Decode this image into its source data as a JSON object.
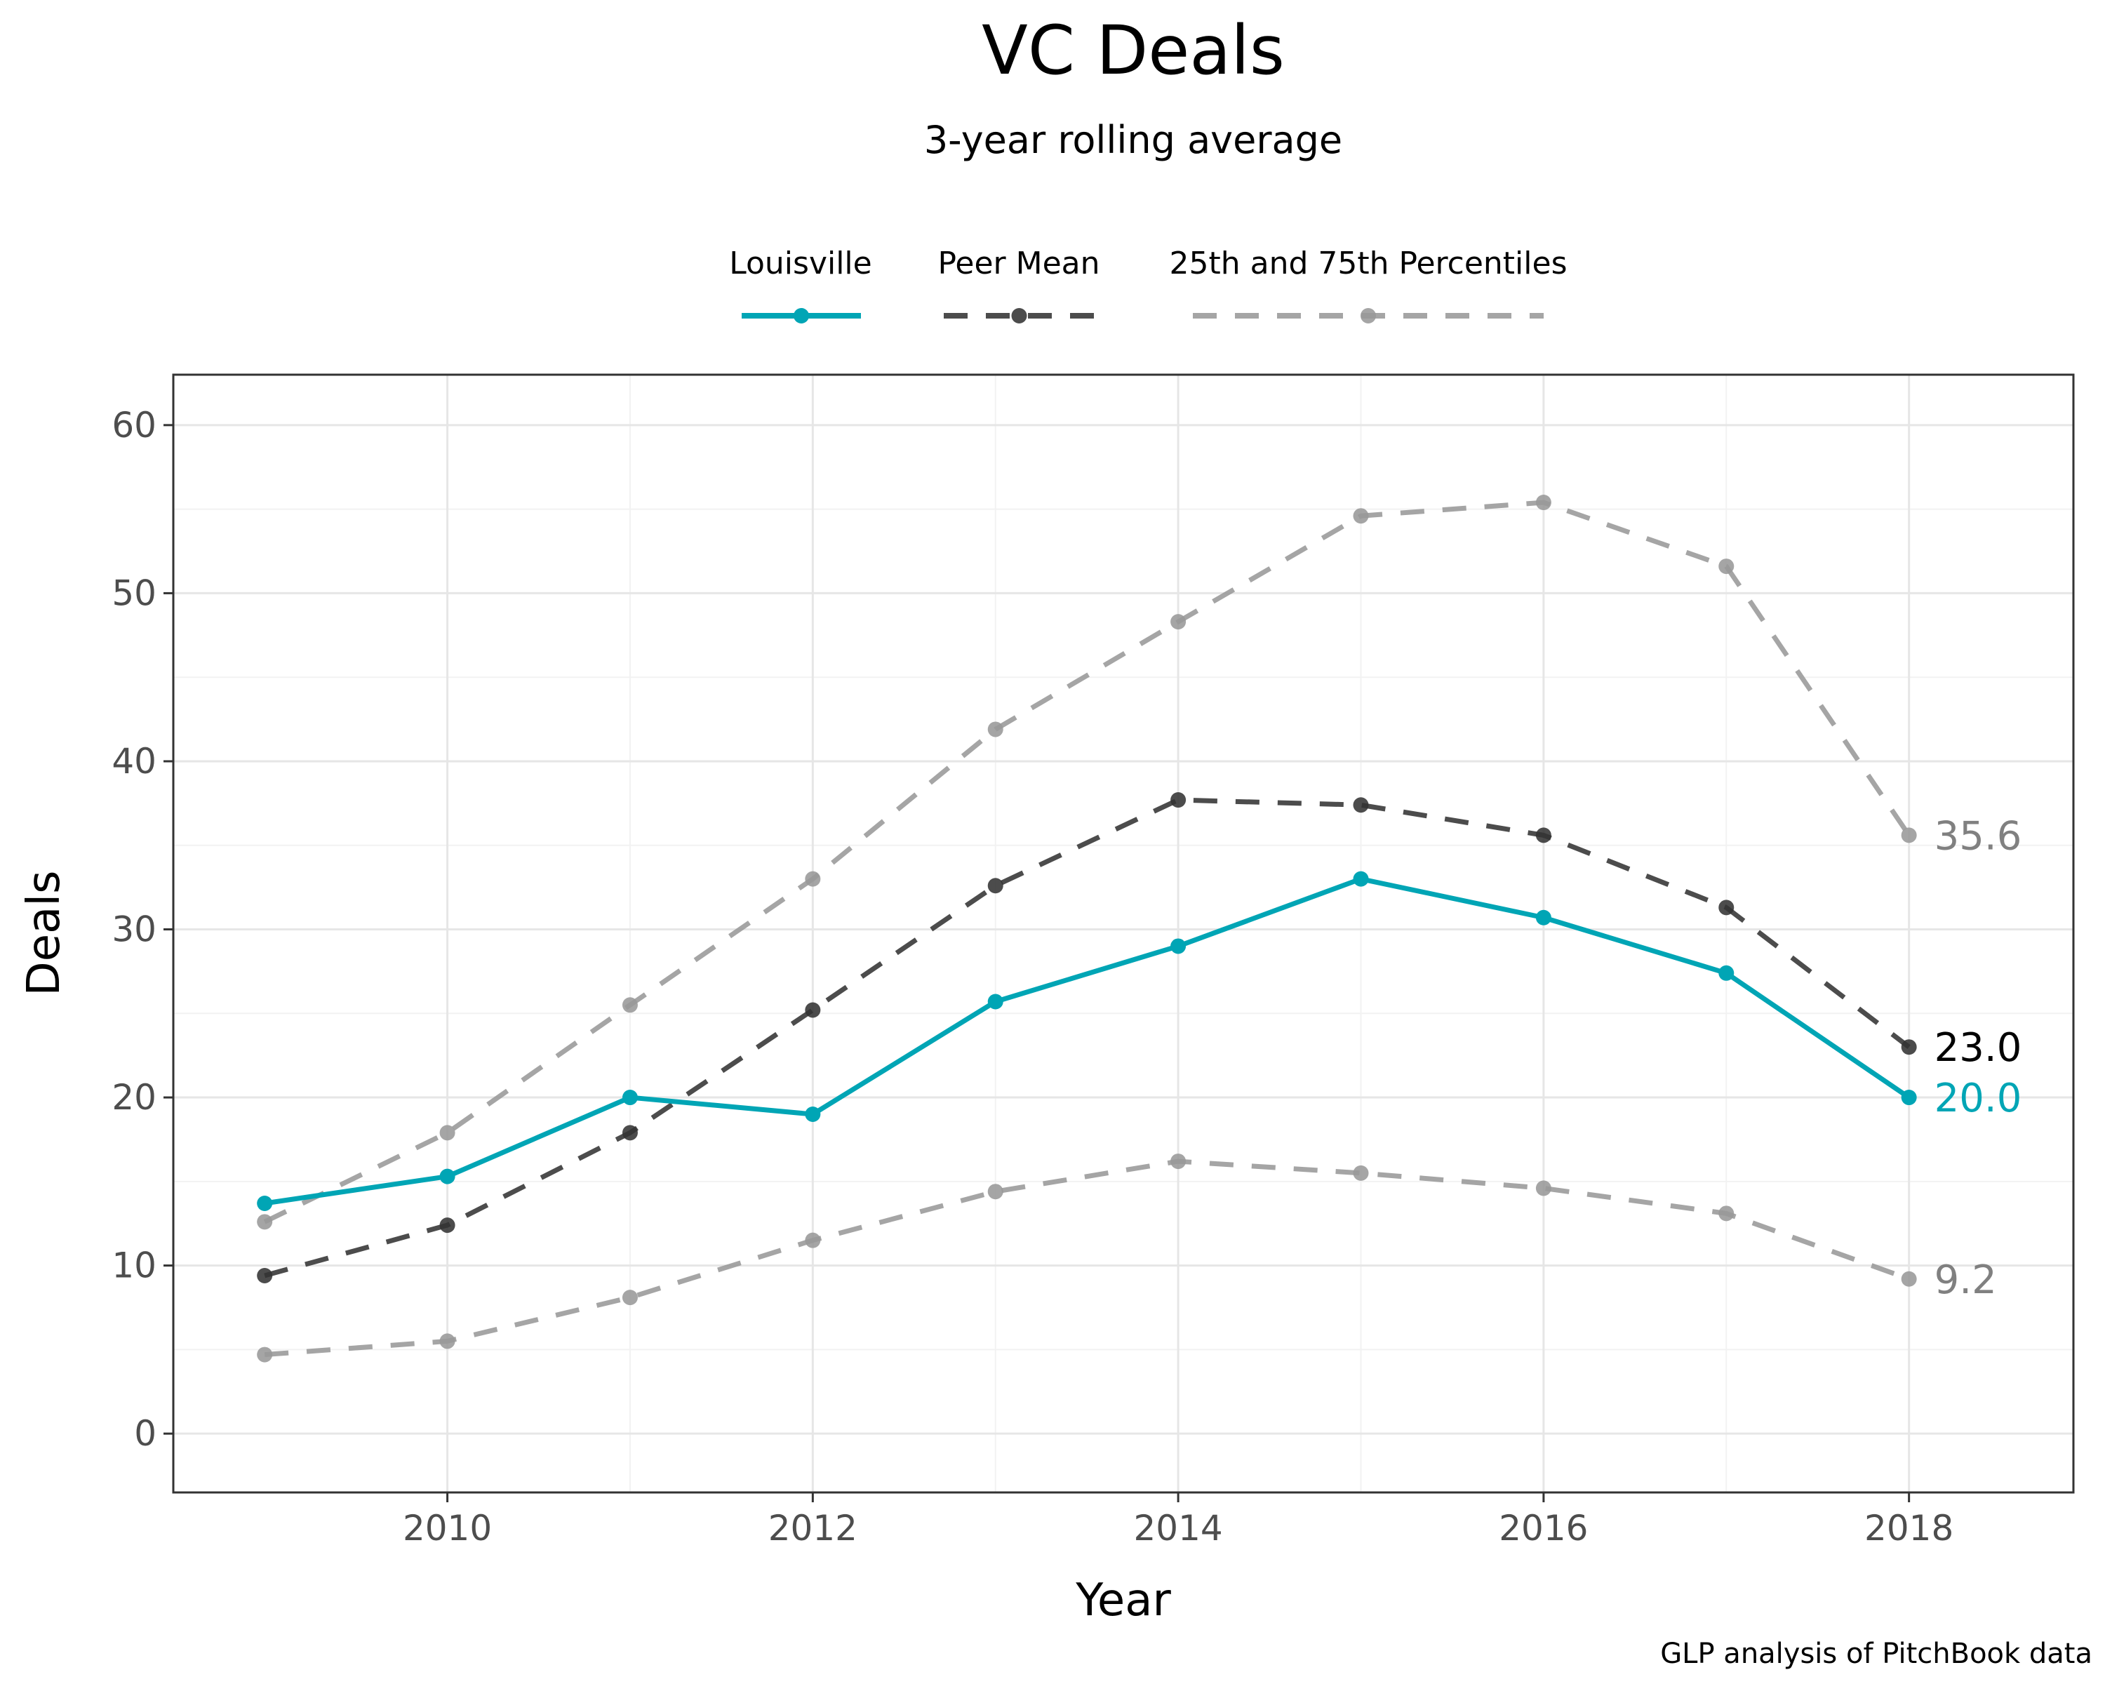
{
  "colors": {
    "louisville": "#00a5b5",
    "peer_mean": "#333333",
    "percentiles": "#999999",
    "end_label_percentiles": "#808080",
    "end_label_mean": "#000000"
  },
  "legend": {
    "items": [
      {
        "key": "louisville",
        "label": "Louisville"
      },
      {
        "key": "peer_mean",
        "label": "Peer Mean"
      },
      {
        "key": "percentiles",
        "label": "25th and 75th Percentiles"
      }
    ]
  },
  "caption": "GLP analysis of PitchBook data",
  "chart_data": {
    "type": "line",
    "title": "VC Deals",
    "subtitle": "3-year rolling average",
    "xlabel": "Year",
    "ylabel": "Deals",
    "xlim": [
      2008.5,
      2018.9
    ],
    "ylim": [
      -3.5,
      63
    ],
    "x_ticks": [
      2010,
      2012,
      2014,
      2016,
      2018
    ],
    "y_ticks": [
      0,
      10,
      20,
      30,
      40,
      50,
      60
    ],
    "grid": true,
    "legend_position": "top",
    "x": [
      2009,
      2010,
      2011,
      2012,
      2013,
      2014,
      2015,
      2016,
      2017,
      2018
    ],
    "series": [
      {
        "key": "p75",
        "name": "25th and 75th Percentiles",
        "style": "dashed",
        "values": [
          12.6,
          17.9,
          25.5,
          33.0,
          41.9,
          48.3,
          54.6,
          55.4,
          51.6,
          35.6
        ],
        "end_label": "35.6"
      },
      {
        "key": "p25",
        "name": "25th and 75th Percentiles",
        "style": "dashed",
        "values": [
          4.7,
          5.5,
          8.1,
          11.5,
          14.4,
          16.2,
          15.5,
          14.6,
          13.1,
          9.2
        ],
        "end_label": "9.2"
      },
      {
        "key": "peer_mean",
        "name": "Peer Mean",
        "style": "dashed",
        "values": [
          9.4,
          12.4,
          17.9,
          25.2,
          32.6,
          37.7,
          37.4,
          35.6,
          31.3,
          23.0
        ],
        "end_label": "23.0"
      },
      {
        "key": "louisville",
        "name": "Louisville",
        "style": "solid",
        "values": [
          13.7,
          15.3,
          20.0,
          19.0,
          25.7,
          29.0,
          33.0,
          30.7,
          27.4,
          20.0
        ],
        "end_label": "20.0"
      }
    ]
  }
}
